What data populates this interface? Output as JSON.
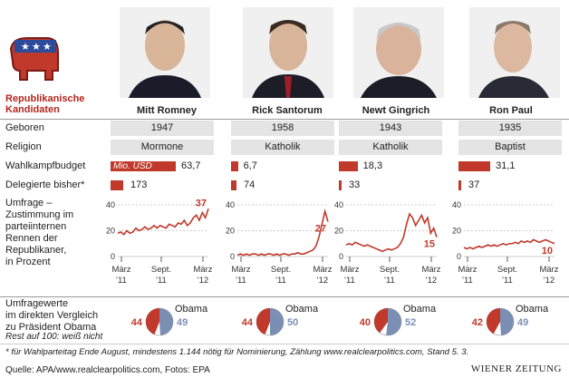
{
  "header": {
    "title_line1": "Republikanische",
    "title_line2": "Kandidaten"
  },
  "candidates": [
    {
      "name": "Mitt Romney",
      "geboren": "1947",
      "religion": "Mormone",
      "budget": 63.7,
      "budget_label": "63,7",
      "delegierte": 173
    },
    {
      "name": "Rick Santorum",
      "geboren": "1958",
      "religion": "Katholik",
      "budget": 6.7,
      "budget_label": "6,7",
      "delegierte": 74
    },
    {
      "name": "Newt Gingrich",
      "geboren": "1943",
      "religion": "Katholik",
      "budget": 18.3,
      "budget_label": "18,3",
      "delegierte": 33
    },
    {
      "name": "Ron Paul",
      "geboren": "1935",
      "religion": "Baptist",
      "budget": 31.1,
      "budget_label": "31,1",
      "delegierte": 37
    }
  ],
  "labels": {
    "geboren": "Geboren",
    "religion": "Religion",
    "budget": "Wahlkampfbudget",
    "budget_unit": "Mio. USD",
    "delegierte": "Delegierte bisher*",
    "umfrage": [
      "Umfrage –",
      "Zustimmung im",
      "parteiinternen",
      "Rennen der",
      "Republikaner,",
      "in Prozent"
    ],
    "vergleich": [
      "Umfragewerte",
      "im direkten Vergleich",
      "zu Präsident Obama"
    ],
    "rest_note": "Rest auf 100: weiß nicht",
    "obama": "Obama"
  },
  "chart_data": {
    "type": "line",
    "xlabel": "",
    "ylabel": "",
    "ylim": [
      0,
      40
    ],
    "yticks": [
      "40",
      "20",
      "0"
    ],
    "xticks": [
      [
        "März",
        "'11"
      ],
      [
        "Sept.",
        "'11"
      ],
      [
        "März",
        "'12"
      ]
    ],
    "series": [
      {
        "name": "Mitt Romney",
        "final_label": "37",
        "values": [
          18,
          19,
          17,
          20,
          18,
          19,
          22,
          20,
          21,
          23,
          21,
          22,
          24,
          22,
          24,
          23,
          22,
          25,
          24,
          23,
          26,
          25,
          28,
          24,
          26,
          30,
          32,
          28,
          34,
          30,
          37
        ]
      },
      {
        "name": "Rick Santorum",
        "final_label": "27",
        "values": [
          1,
          2,
          1,
          2,
          1,
          2,
          2,
          1,
          2,
          1,
          2,
          2,
          1,
          2,
          1,
          2,
          2,
          1,
          2,
          2,
          3,
          2,
          2,
          3,
          4,
          5,
          8,
          15,
          25,
          35,
          27
        ]
      },
      {
        "name": "Newt Gingrich",
        "final_label": "15",
        "values": [
          9,
          10,
          9,
          11,
          10,
          9,
          8,
          9,
          8,
          7,
          6,
          5,
          4,
          5,
          6,
          5,
          6,
          7,
          10,
          15,
          25,
          33,
          30,
          24,
          28,
          32,
          26,
          30,
          18,
          22,
          15
        ]
      },
      {
        "name": "Ron Paul",
        "final_label": "10",
        "values": [
          7,
          6,
          7,
          6,
          7,
          8,
          7,
          8,
          9,
          8,
          9,
          8,
          9,
          10,
          9,
          10,
          10,
          11,
          10,
          12,
          11,
          12,
          11,
          13,
          12,
          11,
          12,
          13,
          12,
          11,
          10
        ]
      }
    ],
    "pies": [
      {
        "candidate": "Mitt Romney",
        "republican": 44,
        "obama": 49
      },
      {
        "candidate": "Rick Santorum",
        "republican": 44,
        "obama": 50
      },
      {
        "candidate": "Newt Gingrich",
        "republican": 40,
        "obama": 52
      },
      {
        "candidate": "Ron Paul",
        "republican": 42,
        "obama": 49
      }
    ]
  },
  "footnote": "* für Wahlparteitag Ende August, mindestens 1.144 nötig für Nominierung, Zählung www.realclearpolitics.com, Stand 5. 3.",
  "source": "Quelle: APA/www.realclearpolitics.com, Fotos: EPA",
  "brand": "WIENER ZEITUNG",
  "colors": {
    "rep": "#c0392b",
    "obama": "#7b8fb5",
    "grey": "#e4e4e4",
    "blue_logo": "#2c4b9b"
  }
}
